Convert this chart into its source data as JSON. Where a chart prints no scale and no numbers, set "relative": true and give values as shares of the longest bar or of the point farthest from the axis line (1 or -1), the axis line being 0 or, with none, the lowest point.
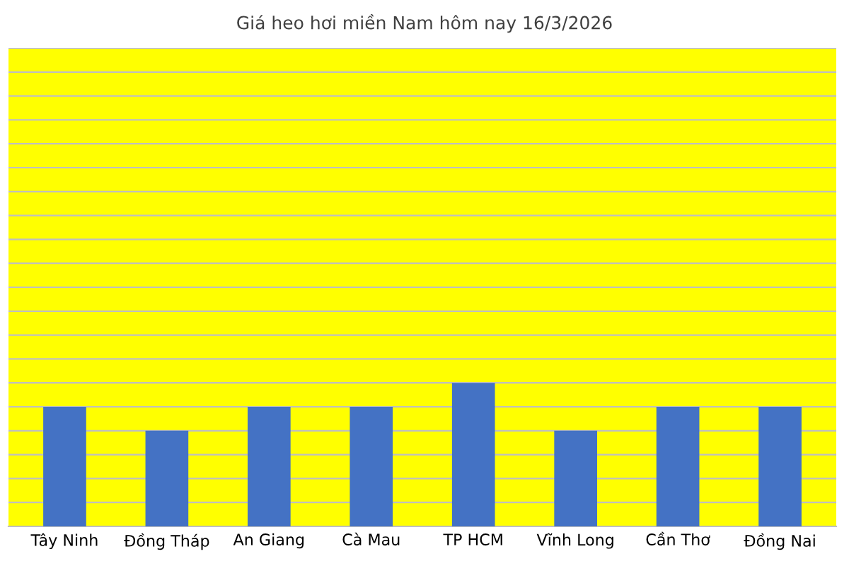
{
  "chart_data": {
    "type": "bar",
    "title": "Giá heo hơi miền Nam hôm nay 16/3/2026",
    "categories": [
      "Tây Ninh",
      "Đồng Tháp",
      "An Giang",
      "Cà Mau",
      "TP HCM",
      "Vĩnh Long",
      "Cần Thơ",
      "Đồng Nai"
    ],
    "values": [
      0.833,
      0.667,
      0.833,
      0.833,
      1,
      0.667,
      0.833,
      0.833
    ],
    "color": "#4472c4",
    "relative": true,
    "grid": "y"
  }
}
